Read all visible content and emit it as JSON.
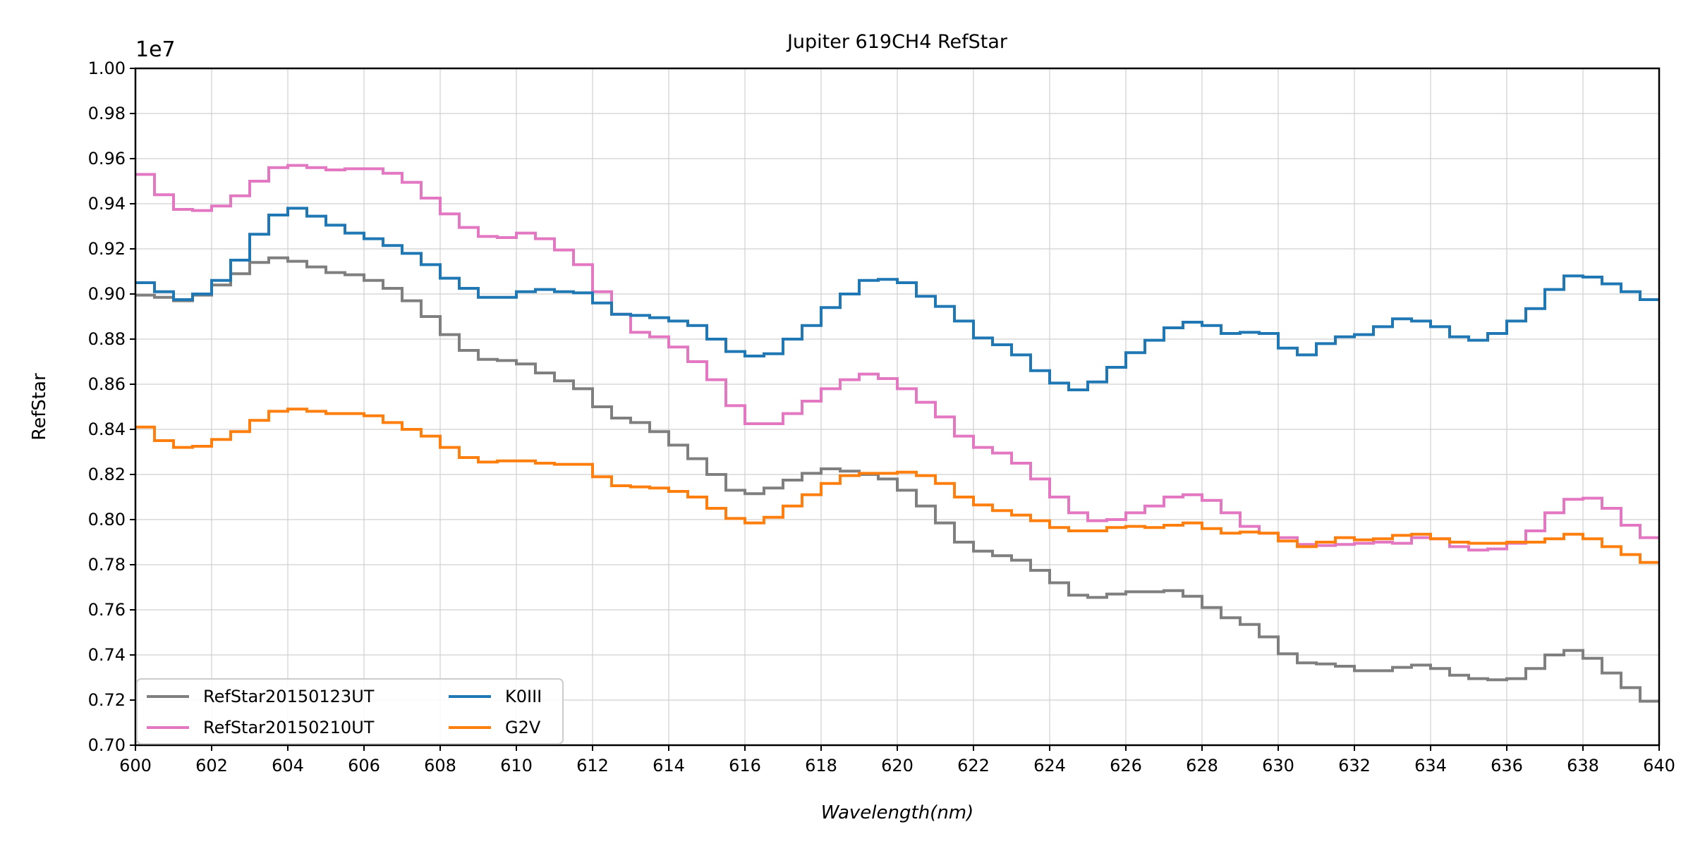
{
  "chart_data": {
    "type": "line",
    "title": "Jupiter 619CH4 RefStar",
    "xlabel": "Wavelength(nm)",
    "ylabel": "RefStar",
    "y_offset_label": "1e7",
    "xlim": [
      600,
      640
    ],
    "ylim": [
      0.7,
      1.0
    ],
    "grid": true,
    "legend_position": "lower-left",
    "legend_columns": 2,
    "step_width": 0.5,
    "x_ticks": [
      "600",
      "602",
      "604",
      "606",
      "608",
      "610",
      "612",
      "614",
      "616",
      "618",
      "620",
      "622",
      "624",
      "626",
      "628",
      "630",
      "632",
      "634",
      "636",
      "638",
      "640"
    ],
    "y_ticks": [
      "0.70",
      "0.72",
      "0.74",
      "0.76",
      "0.78",
      "0.80",
      "0.82",
      "0.84",
      "0.86",
      "0.88",
      "0.90",
      "0.92",
      "0.94",
      "0.96",
      "0.98",
      "1.00"
    ],
    "series": [
      {
        "name": "RefStar20150123UT",
        "color": "#7f7f7f",
        "values": [
          0.8995,
          0.8985,
          0.897,
          0.8995,
          0.904,
          0.909,
          0.914,
          0.916,
          0.9145,
          0.912,
          0.9095,
          0.9085,
          0.906,
          0.9025,
          0.897,
          0.89,
          0.882,
          0.875,
          0.871,
          0.8705,
          0.869,
          0.865,
          0.8615,
          0.858,
          0.85,
          0.845,
          0.843,
          0.839,
          0.833,
          0.827,
          0.82,
          0.813,
          0.8115,
          0.814,
          0.8175,
          0.8205,
          0.8225,
          0.8215,
          0.82,
          0.818,
          0.813,
          0.806,
          0.7985,
          0.79,
          0.786,
          0.784,
          0.782,
          0.7775,
          0.772,
          0.7665,
          0.7655,
          0.767,
          0.768,
          0.768,
          0.7685,
          0.766,
          0.761,
          0.7565,
          0.7535,
          0.748,
          0.7405,
          0.7365,
          0.736,
          0.735,
          0.733,
          0.733,
          0.7345,
          0.7355,
          0.734,
          0.731,
          0.7295,
          0.729,
          0.7295,
          0.734,
          0.74,
          0.742,
          0.7385,
          0.732,
          0.7255,
          0.7195
        ]
      },
      {
        "name": "RefStar20150210UT",
        "color": "#e377c2",
        "values": [
          0.953,
          0.944,
          0.9375,
          0.937,
          0.939,
          0.9435,
          0.95,
          0.956,
          0.957,
          0.956,
          0.955,
          0.9555,
          0.9555,
          0.9535,
          0.9495,
          0.9425,
          0.9355,
          0.9295,
          0.9255,
          0.925,
          0.927,
          0.9245,
          0.9195,
          0.913,
          0.901,
          0.891,
          0.883,
          0.881,
          0.8765,
          0.87,
          0.862,
          0.8505,
          0.8425,
          0.8425,
          0.847,
          0.8525,
          0.858,
          0.862,
          0.8645,
          0.8625,
          0.858,
          0.852,
          0.8455,
          0.837,
          0.832,
          0.8295,
          0.825,
          0.818,
          0.81,
          0.803,
          0.7995,
          0.8,
          0.803,
          0.806,
          0.81,
          0.811,
          0.8085,
          0.803,
          0.797,
          0.794,
          0.792,
          0.789,
          0.7885,
          0.789,
          0.7895,
          0.79,
          0.7895,
          0.792,
          0.7915,
          0.788,
          0.7865,
          0.787,
          0.7895,
          0.795,
          0.803,
          0.809,
          0.8095,
          0.805,
          0.7975,
          0.792
        ]
      },
      {
        "name": "K0III",
        "color": "#1f77b4",
        "values": [
          0.905,
          0.901,
          0.8975,
          0.9,
          0.906,
          0.915,
          0.9265,
          0.935,
          0.938,
          0.9345,
          0.9305,
          0.927,
          0.9245,
          0.9215,
          0.918,
          0.913,
          0.907,
          0.9025,
          0.8985,
          0.8985,
          0.901,
          0.902,
          0.901,
          0.9005,
          0.896,
          0.891,
          0.8905,
          0.8895,
          0.888,
          0.886,
          0.88,
          0.8745,
          0.8725,
          0.8735,
          0.88,
          0.886,
          0.894,
          0.9,
          0.906,
          0.9065,
          0.905,
          0.899,
          0.8945,
          0.888,
          0.8805,
          0.8775,
          0.873,
          0.866,
          0.8605,
          0.8575,
          0.861,
          0.8675,
          0.874,
          0.8795,
          0.885,
          0.8875,
          0.886,
          0.8825,
          0.883,
          0.8825,
          0.876,
          0.873,
          0.878,
          0.881,
          0.882,
          0.8855,
          0.889,
          0.888,
          0.8855,
          0.881,
          0.8795,
          0.8825,
          0.888,
          0.8935,
          0.902,
          0.908,
          0.9075,
          0.9045,
          0.901,
          0.8975
        ]
      },
      {
        "name": "G2V",
        "color": "#ff7f0e",
        "values": [
          0.841,
          0.835,
          0.832,
          0.8325,
          0.8355,
          0.839,
          0.844,
          0.848,
          0.849,
          0.848,
          0.847,
          0.847,
          0.846,
          0.843,
          0.84,
          0.837,
          0.832,
          0.8275,
          0.8255,
          0.826,
          0.826,
          0.825,
          0.8245,
          0.8245,
          0.819,
          0.815,
          0.8145,
          0.814,
          0.8125,
          0.81,
          0.805,
          0.8005,
          0.7985,
          0.801,
          0.806,
          0.811,
          0.816,
          0.8195,
          0.8205,
          0.8205,
          0.821,
          0.8195,
          0.816,
          0.81,
          0.8065,
          0.804,
          0.802,
          0.7995,
          0.7965,
          0.795,
          0.795,
          0.7965,
          0.797,
          0.7965,
          0.7975,
          0.7985,
          0.796,
          0.794,
          0.7945,
          0.794,
          0.7905,
          0.788,
          0.79,
          0.792,
          0.791,
          0.7915,
          0.793,
          0.7935,
          0.7915,
          0.79,
          0.7895,
          0.7895,
          0.79,
          0.79,
          0.7915,
          0.7935,
          0.7915,
          0.788,
          0.7845,
          0.781
        ]
      }
    ]
  }
}
